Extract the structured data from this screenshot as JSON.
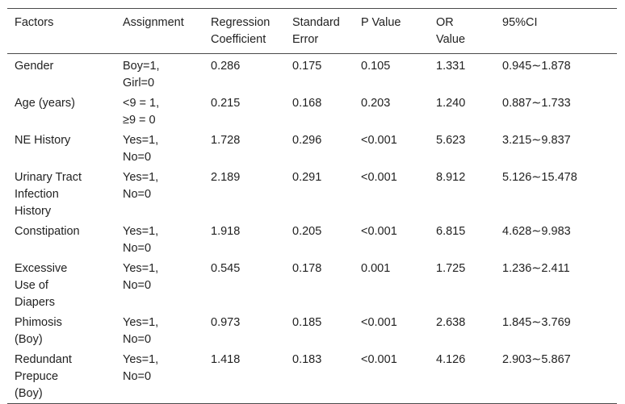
{
  "table": {
    "headers": [
      [
        "Factors"
      ],
      [
        "Assignment"
      ],
      [
        "Regression",
        "Coefficient"
      ],
      [
        "Standard",
        "Error"
      ],
      [
        "P Value"
      ],
      [
        "OR",
        "Value"
      ],
      [
        "95%CI"
      ]
    ],
    "rows": [
      [
        [
          "Gender"
        ],
        [
          "Boy=1,",
          "Girl=0"
        ],
        [
          "0.286"
        ],
        [
          "0.175"
        ],
        [
          "0.105"
        ],
        [
          "1.331"
        ],
        [
          "0.945∼1.878"
        ]
      ],
      [
        [
          "Age (years)"
        ],
        [
          "<9 = 1,",
          "≥9 = 0"
        ],
        [
          "0.215"
        ],
        [
          "0.168"
        ],
        [
          "0.203"
        ],
        [
          "1.240"
        ],
        [
          "0.887∼1.733"
        ]
      ],
      [
        [
          "NE History"
        ],
        [
          "Yes=1,",
          "No=0"
        ],
        [
          "1.728"
        ],
        [
          "0.296"
        ],
        [
          "<0.001"
        ],
        [
          "5.623"
        ],
        [
          "3.215∼9.837"
        ]
      ],
      [
        [
          "Urinary Tract",
          "Infection",
          "History"
        ],
        [
          "Yes=1,",
          "No=0"
        ],
        [
          "2.189"
        ],
        [
          "0.291"
        ],
        [
          "<0.001"
        ],
        [
          "8.912"
        ],
        [
          "5.126∼15.478"
        ]
      ],
      [
        [
          "Constipation"
        ],
        [
          "Yes=1,",
          "No=0"
        ],
        [
          "1.918"
        ],
        [
          "0.205"
        ],
        [
          "<0.001"
        ],
        [
          "6.815"
        ],
        [
          "4.628∼9.983"
        ]
      ],
      [
        [
          "Excessive",
          "Use of",
          "Diapers"
        ],
        [
          "Yes=1,",
          "No=0"
        ],
        [
          "0.545"
        ],
        [
          "0.178"
        ],
        [
          "0.001"
        ],
        [
          "1.725"
        ],
        [
          "1.236∼2.411"
        ]
      ],
      [
        [
          "Phimosis",
          "(Boy)"
        ],
        [
          "Yes=1,",
          "No=0"
        ],
        [
          "0.973"
        ],
        [
          "0.185"
        ],
        [
          "<0.001"
        ],
        [
          "2.638"
        ],
        [
          "1.845∼3.769"
        ]
      ],
      [
        [
          "Redundant",
          "Prepuce",
          "(Boy)"
        ],
        [
          "Yes=1,",
          "No=0"
        ],
        [
          "1.418"
        ],
        [
          "0.183"
        ],
        [
          "<0.001"
        ],
        [
          "4.126"
        ],
        [
          "2.903∼5.867"
        ]
      ]
    ]
  }
}
